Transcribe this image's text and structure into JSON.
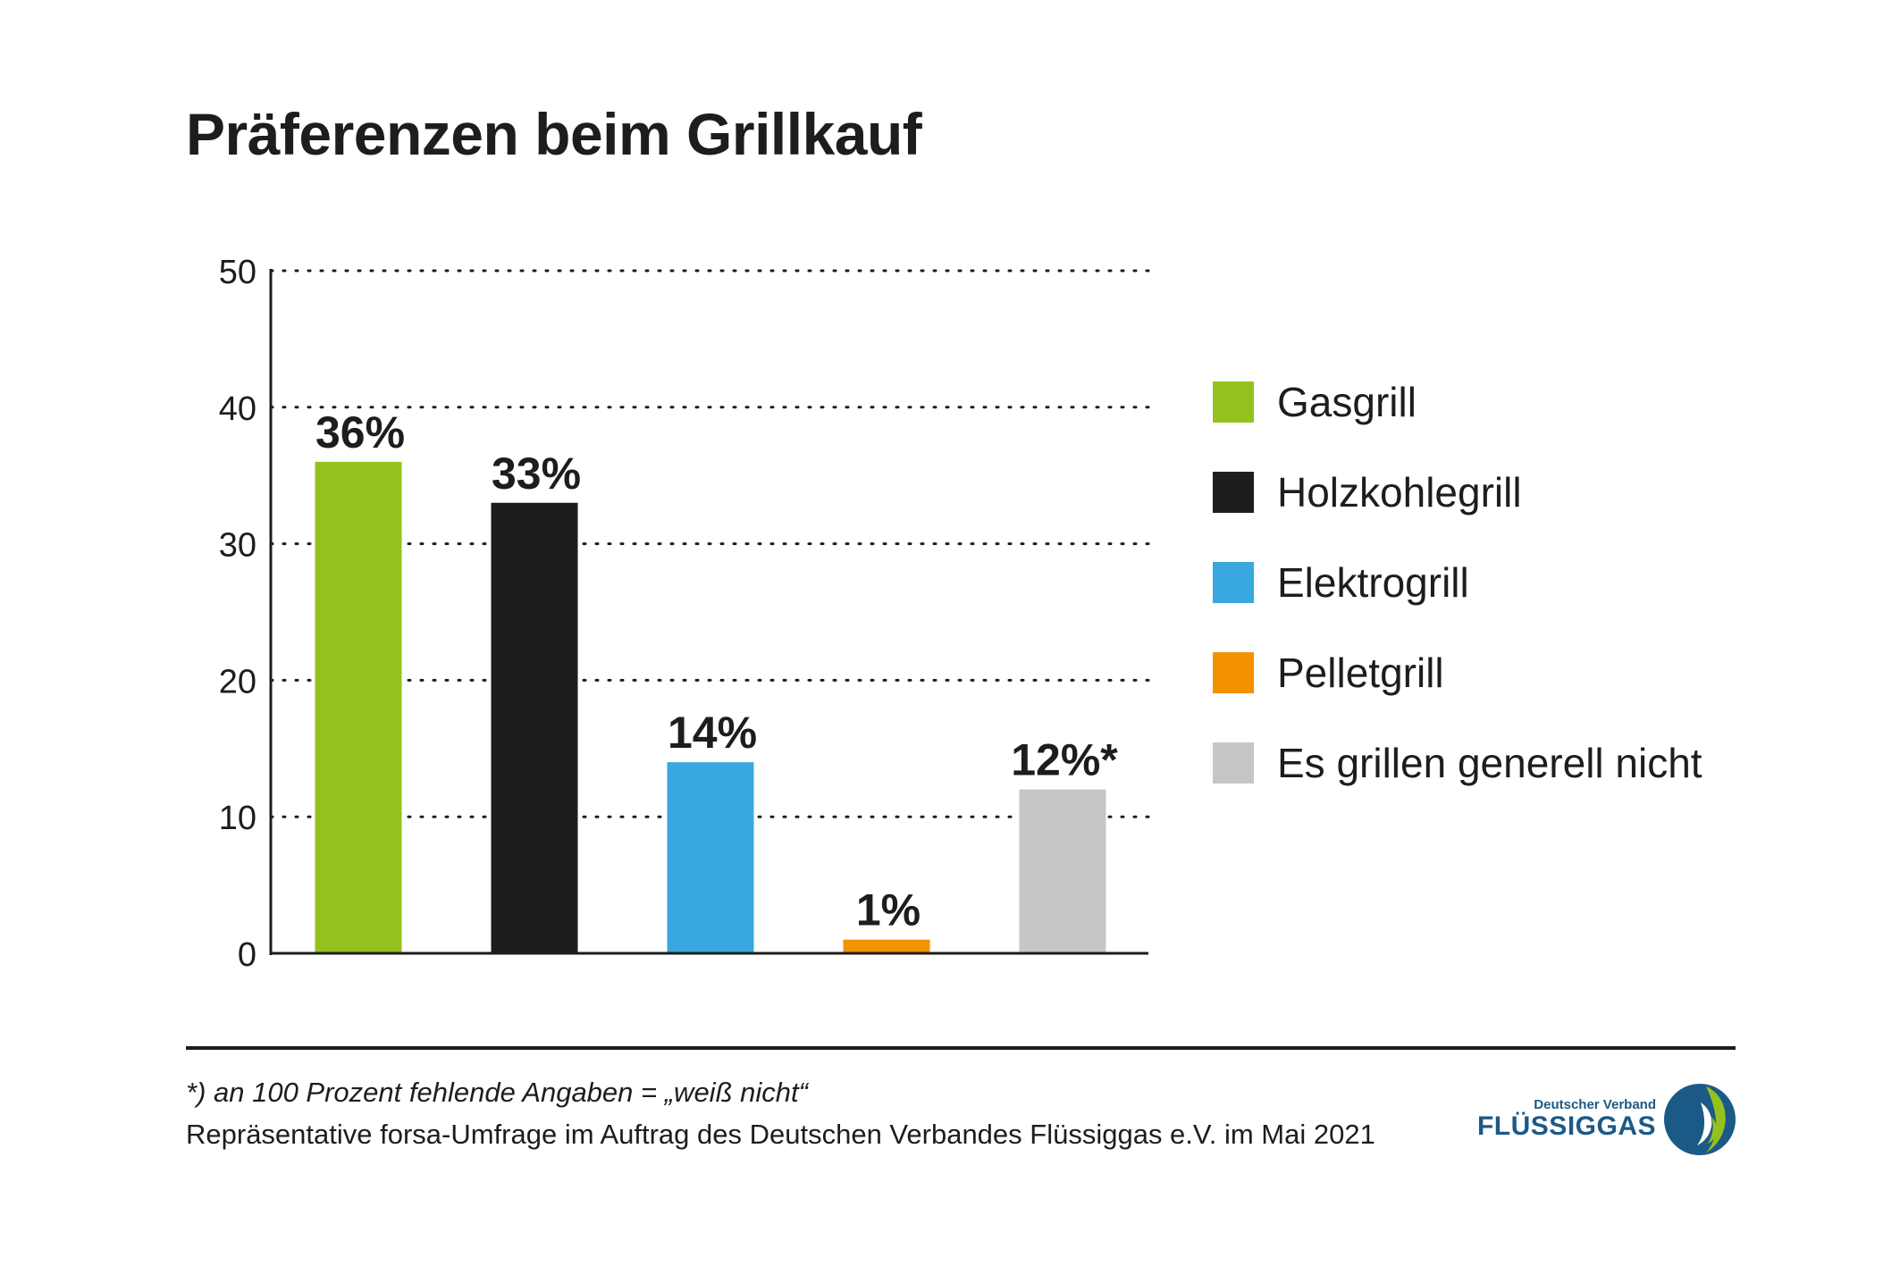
{
  "chart_data": {
    "type": "bar",
    "title": "Präferenzen beim Grillkauf",
    "categories": [
      "Gasgrill",
      "Holzkohlegrill",
      "Elektrogrill",
      "Pelletgrill",
      "Es grillen generell nicht"
    ],
    "values": [
      36,
      33,
      14,
      1,
      12
    ],
    "data_labels": [
      "36%",
      "33%",
      "14%",
      "1%",
      "12%*"
    ],
    "colors": [
      "#95c11f",
      "#1d1d1b",
      "#3aa8e0",
      "#f39200",
      "#c6c6c6"
    ],
    "yticks": [
      "0",
      "10",
      "20",
      "30",
      "40",
      "50"
    ],
    "ylim": [
      0,
      50
    ],
    "grid": "dotted horizontal",
    "legend_position": "right",
    "xlabel": "",
    "ylabel": ""
  },
  "footnote": "*) an 100 Prozent fehlende Angaben = „weiß nicht“",
  "source": "Repräsentative forsa-Umfrage im Auftrag des Deutschen Verbandes Flüssiggas e.V. im Mai 2021",
  "logo": {
    "line1": "Deutscher Verband",
    "line2": "FLÜSSIGGAS",
    "colors": {
      "blue": "#1b5a86",
      "green": "#95c11f"
    }
  }
}
